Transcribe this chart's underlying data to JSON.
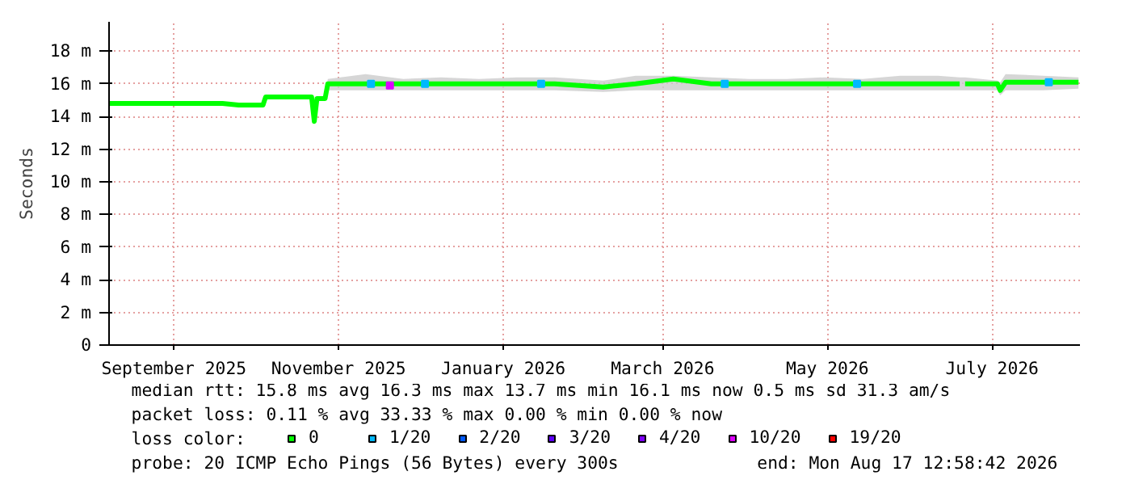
{
  "chart_data": {
    "type": "line",
    "ylabel": "Seconds",
    "legend_title": "loss color:",
    "legend": "bottom",
    "grid": true,
    "marker": "none",
    "line_style": "solid",
    "xlim": [
      "2025-08-23",
      "2026-08-17T12:58"
    ],
    "xticks": [
      {
        "value": "2025-09-16",
        "label": "September 2025"
      },
      {
        "value": "2025-11-16",
        "label": "November 2025"
      },
      {
        "value": "2026-01-16",
        "label": "January 2026"
      },
      {
        "value": "2026-03-16",
        "label": "March 2026"
      },
      {
        "value": "2026-05-16",
        "label": "May 2026"
      },
      {
        "value": "2026-07-16",
        "label": "July 2026"
      }
    ],
    "ylim": [
      0,
      19.8
    ],
    "yticks": [
      0,
      {
        "value": 2,
        "label": "2 m"
      },
      {
        "value": 4,
        "label": "4 m"
      },
      {
        "value": 6,
        "label": "6 m"
      },
      {
        "value": 8,
        "label": "8 m"
      },
      {
        "value": 10,
        "label": "10 m"
      },
      {
        "value": 12,
        "label": "12 m"
      },
      {
        "value": 14,
        "label": "14 m"
      },
      {
        "value": 16,
        "label": "16 m"
      },
      {
        "value": 18,
        "label": "18 m"
      }
    ],
    "series": [
      {
        "name": "0",
        "color": "#00ff00",
        "x": [
          "2025-08-23",
          "2025-09-06",
          "2025-09-20",
          "2025-10-04",
          "2025-10-10",
          "2025-10-19",
          "2025-10-20",
          "2025-11-06",
          "2025-11-07",
          "2025-11-08",
          "2025-11-11",
          "2025-11-12",
          "2025-11-26",
          "2025-12-10",
          "2025-12-24",
          "2026-01-07",
          "2026-01-21",
          "2026-02-04",
          "2026-02-22",
          "2026-03-06",
          "2026-03-20",
          "2026-04-03",
          "2026-04-17",
          "2026-05-01",
          "2026-05-15",
          "2026-05-29",
          "2026-06-12",
          "2026-06-26",
          "2026-07-04",
          "2026-07-05",
          "2026-07-06",
          "2026-07-18",
          "2026-07-19",
          "2026-07-21",
          "2026-08-04",
          "2026-08-17"
        ],
        "values": [
          14.8,
          14.8,
          14.8,
          14.8,
          14.7,
          14.7,
          15.2,
          15.2,
          13.7,
          15.1,
          15.1,
          16.0,
          16.0,
          16.0,
          16.0,
          16.0,
          16.0,
          16.0,
          15.8,
          16.0,
          16.3,
          16.0,
          16.0,
          16.0,
          16.0,
          16.0,
          16.0,
          16.0,
          16.0,
          null,
          16.0,
          16.0,
          15.6,
          16.1,
          16.1,
          16.1
        ],
        "lower": [
          14.75,
          14.75,
          14.75,
          14.75,
          14.65,
          14.65,
          15.1,
          15.1,
          13.7,
          15.05,
          15.05,
          15.6,
          15.6,
          15.6,
          15.6,
          15.6,
          15.6,
          15.6,
          15.5,
          15.6,
          15.6,
          15.6,
          15.6,
          15.6,
          15.6,
          15.6,
          15.6,
          15.6,
          15.6,
          null,
          15.6,
          15.6,
          15.3,
          15.6,
          15.6,
          15.7
        ],
        "upper": [
          14.9,
          14.95,
          14.9,
          14.9,
          14.75,
          14.75,
          15.2,
          15.2,
          15.0,
          15.15,
          15.15,
          16.3,
          16.6,
          16.3,
          16.4,
          16.3,
          16.4,
          16.4,
          16.2,
          16.5,
          16.5,
          16.4,
          16.3,
          16.3,
          16.4,
          16.3,
          16.5,
          16.5,
          16.4,
          null,
          16.4,
          16.2,
          16.1,
          16.6,
          16.5,
          16.4
        ]
      },
      {
        "name": "1/20",
        "color": "#00b8ff",
        "type": "scatter",
        "marker": "square",
        "x": [
          "2025-11-28",
          "2025-12-18",
          "2026-01-30",
          "2026-04-08",
          "2026-05-27",
          "2026-08-06"
        ],
        "values": [
          16.0,
          16.0,
          16.0,
          16.0,
          16.0,
          16.1
        ]
      },
      {
        "name": "2/20",
        "color": "#0059ff",
        "type": "scatter",
        "marker": "square"
      },
      {
        "name": "3/20",
        "color": "#5e00ff",
        "type": "scatter",
        "marker": "square"
      },
      {
        "name": "4/20",
        "color": "#7e00ff",
        "type": "scatter",
        "marker": "square"
      },
      {
        "name": "10/20",
        "color": "#dd00ff",
        "type": "scatter",
        "marker": "square",
        "x": [
          "2025-12-05"
        ],
        "values": [
          15.9
        ]
      },
      {
        "name": "19/20",
        "color": "#ff0000",
        "type": "scatter",
        "marker": "square"
      }
    ],
    "annotations": [
      "median rtt:  15.8 ms avg  16.3 ms max  13.7 ms min  16.1 ms now  0.5 ms sd  31.3   am/s",
      "packet loss: 0.11 % avg  33.33 % max  0.00 % min  0.00 % now",
      "probe:       20 ICMP Echo Pings (56 Bytes) every 300s",
      "end: Mon Aug 17 12:58:42 2026"
    ]
  }
}
